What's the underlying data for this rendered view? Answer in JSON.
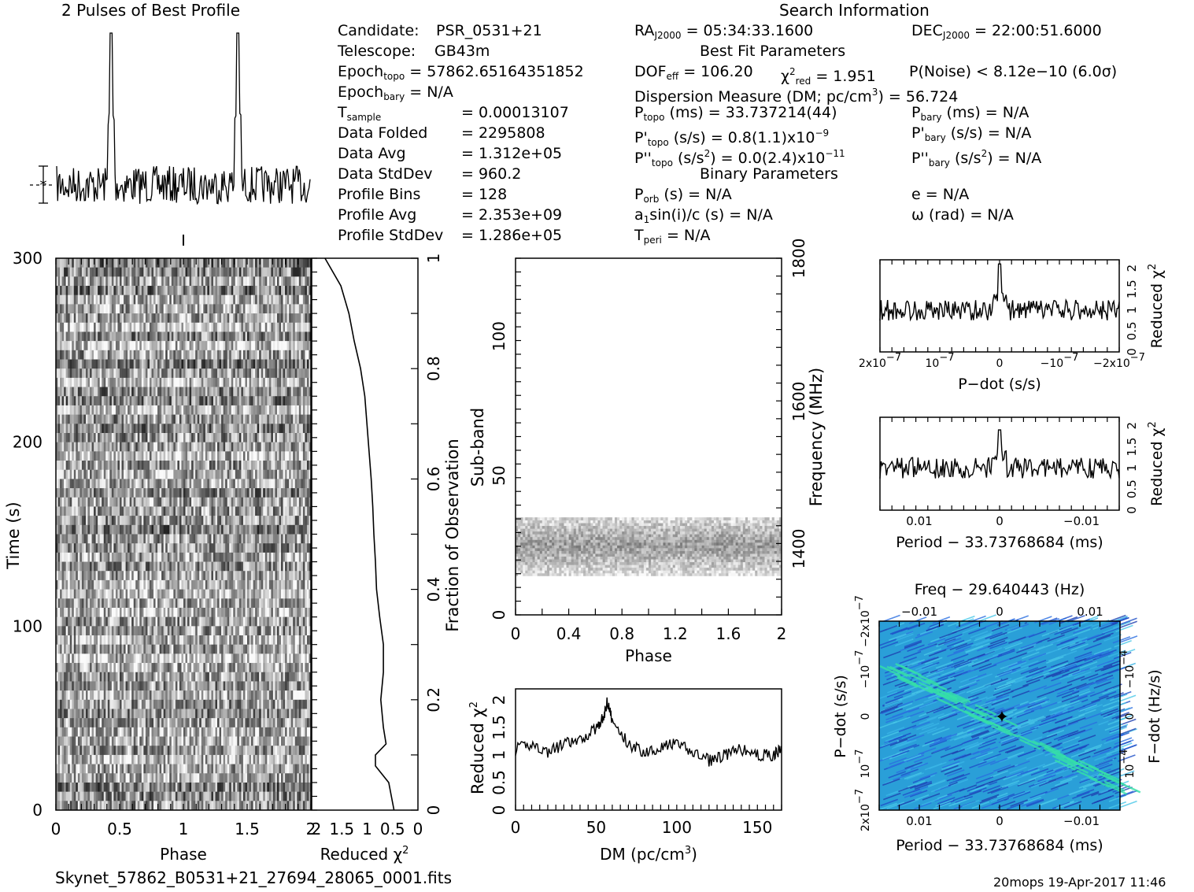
{
  "header": {
    "profile_title": "2 Pulses of Best Profile",
    "search_title": "Search Information",
    "best_fit_title": "Best Fit Parameters",
    "binary_title": "Binary Parameters"
  },
  "info": {
    "candidate_label": "Candidate:",
    "candidate": "PSR_0531+21",
    "telescope_label": "Telescope:",
    "telescope": "GB43m",
    "epoch_topo": "= 57862.65164351852",
    "epoch_bary": "= N/A",
    "t_sample": "=   0.00013107",
    "data_folded_label": "Data Folded",
    "data_folded": "=   2295808",
    "data_avg_label": "Data Avg",
    "data_avg": "=   1.312e+05",
    "data_stddev_label": "Data StdDev",
    "data_stddev": "=   960.2",
    "profile_bins_label": "Profile Bins",
    "profile_bins": "=   128",
    "profile_avg_label": "Profile Avg",
    "profile_avg": "=   2.353e+09",
    "profile_stddev_label": "Profile StdDev",
    "profile_stddev": "=   1.286e+05",
    "ra": "= 05:34:33.1600",
    "dec": "= 22:00:51.6000",
    "dof": "= 106.20",
    "chi2": "= 1.951",
    "pnoise": "P(Noise) < 8.12e−10  (6.0σ)",
    "dm_line": "Dispersion Measure (DM; pc/cm",
    "dm_value": ") = 56.724",
    "p_topo": "(ms) =  33.737214(44)",
    "p_bary": "(ms) = N/A",
    "pd_topo": "(s/s) =  0.8(1.1)x10",
    "pd_topo_exp": "−9",
    "pd_bary": "(s/s) = N/A",
    "pdd_topo": "(s/s",
    "pdd_topo_val": ") = 0.0(2.4)x10",
    "pdd_topo_exp": "−11",
    "pdd_bary": "(s/s",
    "pdd_bary_val": ") = N/A",
    "porb": "(s) = N/A",
    "asini": "sin(i)/c (s) = N/A",
    "tperi": "= N/A",
    "ecc": "e = N/A",
    "omega": "ω (rad) = N/A"
  },
  "footer": {
    "filename": "Skynet_57862_B0531+21_27694_28065_0001.fits",
    "stamp": "20mops 19-Apr-2017 11:46"
  },
  "chart_data": [
    {
      "name": "profile",
      "type": "line",
      "title": "2 Pulses of Best Profile",
      "x_range": [
        0,
        2
      ],
      "peaks_phase": [
        0.43,
        1.43
      ],
      "note_bins": 128
    },
    {
      "name": "time-phase",
      "type": "heatmap",
      "xlabel": "Phase",
      "ylabel": "Time (s)",
      "x_ticks": [
        "0",
        "0.5",
        "1",
        "1.5",
        "2"
      ],
      "y_ticks": [
        "0",
        "100",
        "200",
        "300"
      ],
      "xlim": [
        0,
        2
      ],
      "ylim": [
        0,
        300
      ]
    },
    {
      "name": "time-chi2",
      "type": "line",
      "xlabel": "Reduced χ",
      "ylabel_right": "Fraction of Observation",
      "x_ticks": [
        "2",
        "1.5",
        "1",
        "0.5",
        "0"
      ],
      "y_ticks_right": [
        "0",
        "0.2",
        "0.4",
        "0.6",
        "0.8",
        "1"
      ],
      "xlim": [
        2,
        0
      ],
      "fraction": [
        0.0,
        0.05,
        0.08,
        0.1,
        0.12,
        0.15,
        0.2,
        0.25,
        0.3,
        0.35,
        0.4,
        0.45,
        0.5,
        0.55,
        0.6,
        0.65,
        0.7,
        0.75,
        0.8,
        0.85,
        0.9,
        0.95,
        1.0
      ],
      "chi2": [
        0.45,
        0.55,
        0.8,
        0.8,
        0.6,
        0.65,
        0.7,
        0.65,
        0.65,
        0.72,
        0.78,
        0.8,
        0.83,
        0.85,
        0.88,
        0.92,
        0.96,
        1.0,
        1.08,
        1.2,
        1.3,
        1.45,
        1.75
      ]
    },
    {
      "name": "subband-phase",
      "type": "heatmap",
      "xlabel": "Phase",
      "ylabel": "Sub-band",
      "ylabel_right": "Frequency (MHz)",
      "x_ticks": [
        "0",
        "0.4",
        "0.8",
        "1.2",
        "1.6",
        "2"
      ],
      "y_ticks": [
        "0",
        "50",
        "100"
      ],
      "y_ticks_right": [
        "1400",
        "1600",
        "1800"
      ],
      "xlim": [
        0,
        2
      ],
      "ylim": [
        0,
        128
      ],
      "active_band": [
        14,
        35
      ]
    },
    {
      "name": "dm-chi2",
      "type": "line",
      "xlabel": "DM (pc/cm",
      "xlabel_exp": "3",
      "xlabel_end": ")",
      "ylabel": "Reduced χ",
      "x_ticks": [
        "0",
        "50",
        "100",
        "150"
      ],
      "y_ticks": [
        "0",
        "0.5",
        "1",
        "1.5",
        "2"
      ],
      "xlim": [
        0,
        165
      ],
      "ylim": [
        0,
        2.2
      ],
      "x": [
        0,
        10,
        20,
        30,
        40,
        50,
        55,
        57,
        60,
        70,
        80,
        90,
        100,
        110,
        120,
        130,
        140,
        150,
        160,
        165
      ],
      "y": [
        1.1,
        1.2,
        1.05,
        1.2,
        1.25,
        1.5,
        1.7,
        2.0,
        1.6,
        1.2,
        1.05,
        1.15,
        1.2,
        1.05,
        0.9,
        1.0,
        1.1,
        1.0,
        1.0,
        1.1
      ]
    },
    {
      "name": "pdot-chi2",
      "type": "line",
      "xlabel": "P−dot (s/s)",
      "ylabel_right": "Reduced χ",
      "x_ticks": [
        "2x10",
        "10",
        "0",
        "−10",
        "−2x10"
      ],
      "x_tick_exp": "−7",
      "y_ticks_right": [
        "0",
        "0.5",
        "1",
        "1.5",
        "2"
      ],
      "xlim": [
        2e-07,
        -2e-07
      ],
      "ylim": [
        0,
        2.2
      ],
      "peak_at": 0,
      "peak_value": 2.1,
      "baseline": 1.0
    },
    {
      "name": "period-chi2",
      "type": "line",
      "xlabel": "Period − 33.73768684 (ms)",
      "ylabel_right": "Reduced χ",
      "x_ticks": [
        "0.01",
        "0",
        "−0.01"
      ],
      "y_ticks_right": [
        "0",
        "0.5",
        "1",
        "1.5",
        "2"
      ],
      "xlim": [
        0.016,
        -0.016
      ],
      "ylim": [
        0,
        2.2
      ],
      "peak_at": 0,
      "peak_value": 1.9,
      "baseline": 1.0
    },
    {
      "name": "pdot-period-map",
      "type": "heatmap",
      "title": "Freq − 29.640443 (Hz)",
      "xlabel": "Period − 33.73768684 (ms)",
      "ylabel": "P−dot (s/s)",
      "ylabel_right": "F−dot (Hz/s)",
      "x_ticks_top": [
        "−0.01",
        "0",
        "0.01"
      ],
      "x_ticks": [
        "0.01",
        "0",
        "−0.01"
      ],
      "y_ticks": [
        "2x10",
        "10",
        "0",
        "−10",
        "−2x10"
      ],
      "y_tick_exp": "−7",
      "y_ticks_right": [
        "−10",
        "0",
        "10"
      ],
      "y_tick_right_exp": "−4",
      "best": [
        0,
        0
      ]
    }
  ]
}
